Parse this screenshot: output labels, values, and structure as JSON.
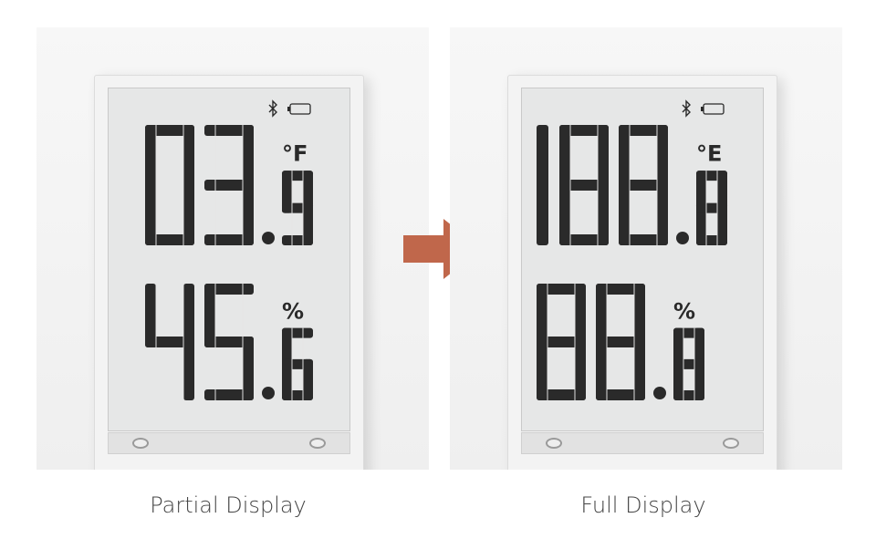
{
  "panels": [
    {
      "caption": "Partial Display",
      "temperature": {
        "integer": "03",
        "decimal": "9",
        "unit": "°F"
      },
      "humidity": {
        "integer": "45",
        "decimal": "6",
        "unit": "%"
      },
      "icons": [
        "bluetooth-icon",
        "battery-icon"
      ]
    },
    {
      "caption": "Full Display",
      "temperature": {
        "integer": "188",
        "decimal": "8",
        "unit": "°E"
      },
      "humidity": {
        "integer": "88",
        "decimal": "8",
        "unit": "%"
      },
      "icons": [
        "bluetooth-icon",
        "battery-icon"
      ]
    }
  ],
  "colors": {
    "segment": "#2a2a2a",
    "screen": "#e6e7e7",
    "arrow": "#c0674b"
  }
}
